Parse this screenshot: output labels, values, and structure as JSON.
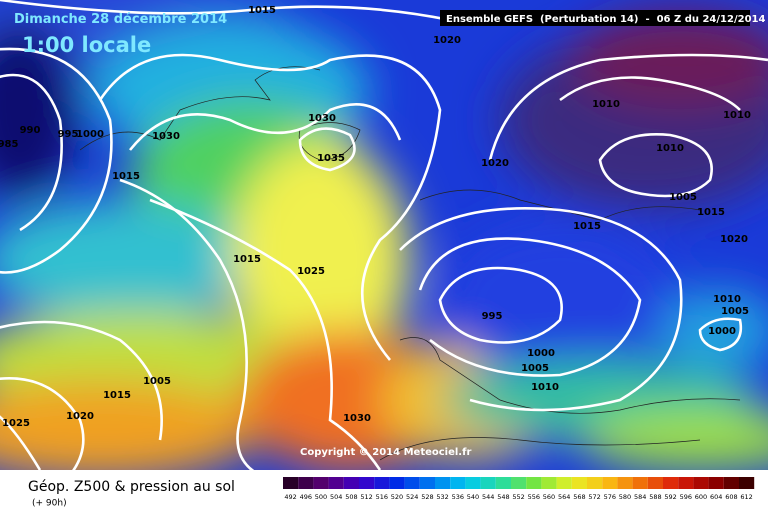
{
  "header": {
    "date": "Dimanche 28 décembre 2014",
    "time": "1:00 locale",
    "run": "Ensemble GEFS  (Perturbation 14)  -  06 Z du 24/12/2014"
  },
  "isobar_labels": [
    "1015",
    "1020",
    "990",
    "985",
    "995",
    "1000",
    "1030",
    "1030",
    "1035",
    "1015",
    "1020",
    "1010",
    "1010",
    "1010",
    "1005",
    "1015",
    "1015",
    "1020",
    "1015",
    "1025",
    "995",
    "1000",
    "1005",
    "1010",
    "1010",
    "1005",
    "1000",
    "1005",
    "1015",
    "1020",
    "1025",
    "1030"
  ],
  "copyright": "Copyright © 2014 Meteociel.fr",
  "footer": {
    "title": "Géop. Z500 & pression au sol",
    "lead": "(+ 90h)"
  },
  "scale": [
    492,
    496,
    500,
    504,
    508,
    512,
    516,
    520,
    524,
    528,
    532,
    536,
    540,
    544,
    548,
    552,
    556,
    560,
    564,
    568,
    572,
    576,
    580,
    584,
    588,
    592,
    596,
    600,
    604,
    608,
    612
  ]
}
